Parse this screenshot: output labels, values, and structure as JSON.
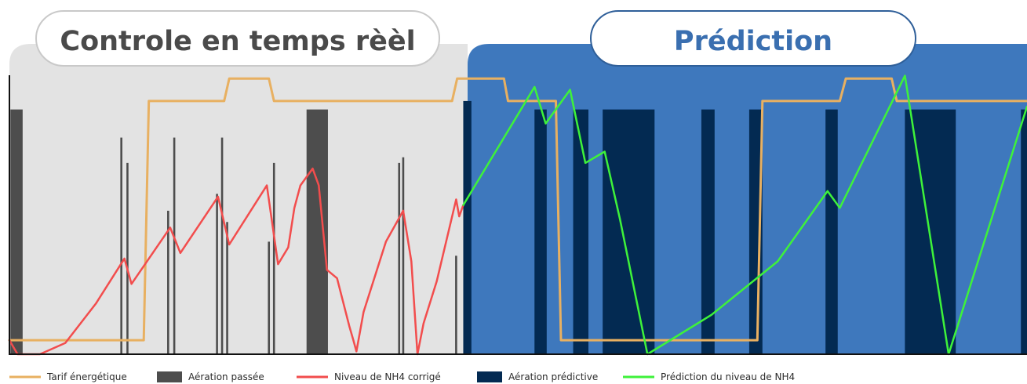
{
  "colors": {
    "past_panel": "#e3e3e3",
    "prediction_panel": "#3e78bd",
    "past_aeration": "#4d4d4d",
    "predictive_aeration": "#032a52",
    "tariff": "#e8b061",
    "nh4_corrected": "#f24d4d",
    "nh4_predicted": "#3ef23a",
    "past_title_text": "#4a4a4a",
    "prediction_title_text": "#3a6fb0",
    "axis": "#111111"
  },
  "sections": {
    "past": {
      "title": "Controle en temps rèèl"
    },
    "prediction": {
      "title": "Prédiction"
    }
  },
  "chart_data": {
    "type": "line",
    "title": "",
    "xlabel": "",
    "ylabel": "",
    "xlim": [
      0,
      100
    ],
    "ylim": [
      0,
      100
    ],
    "grid": false,
    "legend_position": "bottom",
    "split_x": 44.6,
    "series": [
      {
        "name": "Tarif énergétique",
        "kind": "step-line",
        "points": [
          [
            0,
            5
          ],
          [
            13.2,
            5
          ],
          [
            13.7,
            90
          ],
          [
            21.1,
            90
          ],
          [
            21.6,
            98
          ],
          [
            25.5,
            98
          ],
          [
            26.0,
            90
          ],
          [
            43.5,
            90
          ],
          [
            44.0,
            98
          ],
          [
            48.6,
            98
          ],
          [
            49.0,
            90
          ],
          [
            53.7,
            90
          ],
          [
            54.2,
            5
          ],
          [
            73.5,
            5
          ],
          [
            74.0,
            90
          ],
          [
            81.6,
            90
          ],
          [
            82.2,
            98
          ],
          [
            86.7,
            98
          ],
          [
            87.2,
            90
          ],
          [
            100,
            90
          ]
        ]
      },
      {
        "name": "Aération passée",
        "kind": "bars",
        "bars": [
          {
            "x0": 0.1,
            "x1": 1.3,
            "top": 87
          },
          {
            "x0": 10.9,
            "x1": 11.1,
            "top": 77
          },
          {
            "x0": 11.5,
            "x1": 11.7,
            "top": 68
          },
          {
            "x0": 15.5,
            "x1": 15.7,
            "top": 51
          },
          {
            "x0": 16.1,
            "x1": 16.3,
            "top": 77
          },
          {
            "x0": 20.3,
            "x1": 20.5,
            "top": 57
          },
          {
            "x0": 20.8,
            "x1": 21.0,
            "top": 77
          },
          {
            "x0": 21.3,
            "x1": 21.5,
            "top": 47
          },
          {
            "x0": 25.4,
            "x1": 25.6,
            "top": 40
          },
          {
            "x0": 25.9,
            "x1": 26.1,
            "top": 68
          },
          {
            "x0": 29.2,
            "x1": 31.3,
            "top": 87
          },
          {
            "x0": 38.2,
            "x1": 38.4,
            "top": 68
          },
          {
            "x0": 38.6,
            "x1": 38.8,
            "top": 70
          },
          {
            "x0": 43.8,
            "x1": 44.0,
            "top": 35
          }
        ]
      },
      {
        "name": "Niveau de NH4 corrigé",
        "kind": "line",
        "points": [
          [
            0,
            5
          ],
          [
            0.8,
            0
          ],
          [
            3,
            0
          ],
          [
            5.5,
            4
          ],
          [
            8.5,
            18
          ],
          [
            11.3,
            34
          ],
          [
            12,
            25
          ],
          [
            15.8,
            45
          ],
          [
            16.8,
            36
          ],
          [
            20.5,
            56
          ],
          [
            21.6,
            39
          ],
          [
            25.3,
            60
          ],
          [
            26.4,
            32
          ],
          [
            27.4,
            38
          ],
          [
            28,
            52
          ],
          [
            28.6,
            60
          ],
          [
            29.8,
            66
          ],
          [
            30.4,
            60
          ],
          [
            31.2,
            30
          ],
          [
            32.2,
            27
          ],
          [
            33.4,
            10
          ],
          [
            33.8,
            5
          ],
          [
            34.1,
            1
          ],
          [
            34.8,
            15
          ],
          [
            37,
            40
          ],
          [
            38.7,
            51
          ],
          [
            39.5,
            33
          ],
          [
            40.1,
            0
          ],
          [
            40.7,
            11
          ],
          [
            42,
            26
          ],
          [
            43.9,
            55
          ],
          [
            44.2,
            49
          ],
          [
            44.6,
            53
          ]
        ]
      },
      {
        "name": "Aération prédictive",
        "kind": "bars",
        "bars": [
          {
            "x0": 44.6,
            "x1": 45.4,
            "top": 90
          },
          {
            "x0": 51.6,
            "x1": 52.8,
            "top": 87
          },
          {
            "x0": 55.4,
            "x1": 56.9,
            "top": 87
          },
          {
            "x0": 58.3,
            "x1": 63.4,
            "top": 87
          },
          {
            "x0": 68.0,
            "x1": 69.3,
            "top": 87
          },
          {
            "x0": 72.7,
            "x1": 74.0,
            "top": 87
          },
          {
            "x0": 80.2,
            "x1": 81.4,
            "top": 87
          },
          {
            "x0": 88.0,
            "x1": 93.0,
            "top": 87
          },
          {
            "x0": 99.4,
            "x1": 100,
            "top": 87
          }
        ]
      },
      {
        "name": "Prédiction du niveau de NH4",
        "kind": "line",
        "points": [
          [
            44.6,
            53
          ],
          [
            51.6,
            95
          ],
          [
            52.7,
            82
          ],
          [
            55.1,
            94
          ],
          [
            56.6,
            68
          ],
          [
            58.5,
            72
          ],
          [
            60,
            48
          ],
          [
            62.7,
            0
          ],
          [
            69,
            14
          ],
          [
            75.5,
            33
          ],
          [
            80.4,
            58
          ],
          [
            81.6,
            52
          ],
          [
            88,
            99
          ],
          [
            92.3,
            0
          ],
          [
            100,
            88
          ]
        ]
      }
    ]
  },
  "legend": [
    {
      "label": "Tarif énergétique",
      "kind": "line",
      "color_key": "tariff"
    },
    {
      "label": "Aération passée",
      "kind": "block",
      "color_key": "past_aeration"
    },
    {
      "label": "Niveau de NH4 corrigé",
      "kind": "line",
      "color_key": "nh4_corrected"
    },
    {
      "label": "Aération prédictive",
      "kind": "block",
      "color_key": "predictive_aeration"
    },
    {
      "label": "Prédiction du niveau de NH4",
      "kind": "line",
      "color_key": "nh4_predicted"
    }
  ]
}
